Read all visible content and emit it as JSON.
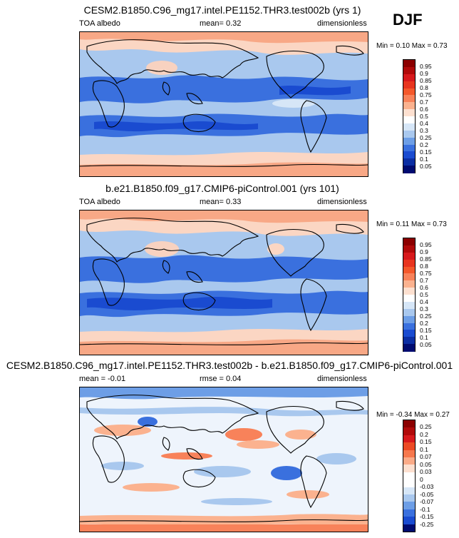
{
  "season": "DJF",
  "panels": [
    {
      "id": "test",
      "title": "CESM2.B1850.C96_mg17.intel.PE1152.THR3.test002b (yrs 1)",
      "left_label": "TOA albedo",
      "center_label": "mean=  0.32",
      "right_label": "dimensionless",
      "minmax": "Min =  0.10 Max =  0.73"
    },
    {
      "id": "control",
      "title": "b.e21.B1850.f09_g17.CMIP6-piControl.001 (yrs 101)",
      "left_label": "TOA albedo",
      "center_label": "mean=  0.33",
      "right_label": "dimensionless",
      "minmax": "Min =  0.11 Max =  0.73"
    },
    {
      "id": "diff",
      "title": "CESM2.B1850.C96_mg17.intel.PE1152.THR3.test002b - b.e21.B1850.f09_g17.CMIP6-piControl.001",
      "left_label": "mean =  -0.01",
      "center_label": "rmse =  0.04",
      "right_label": "dimensionless",
      "minmax": "Min =  -0.34 Max =  0.27"
    }
  ],
  "colorbars": {
    "absolute": {
      "labels": [
        "0.95",
        "0.9",
        "0.85",
        "0.8",
        "0.75",
        "0.7",
        "0.6",
        "0.5",
        "0.4",
        "0.3",
        "0.25",
        "0.2",
        "0.15",
        "0.1",
        "0.05"
      ],
      "colors": [
        "#8b0000",
        "#b00a0a",
        "#d7191c",
        "#e8351f",
        "#f4582b",
        "#f8825a",
        "#fbb28f",
        "#fde0d0",
        "#ffffff",
        "#d6e6f7",
        "#a9c8ee",
        "#6d9ee6",
        "#3a70de",
        "#1a4bd0",
        "#0b2ea3",
        "#000b70"
      ]
    },
    "difference": {
      "labels": [
        "0.25",
        "0.2",
        "0.15",
        "0.1",
        "0.07",
        "0.05",
        "0.03",
        "0",
        "-0.03",
        "-0.05",
        "-0.07",
        "-0.1",
        "-0.15",
        "-0.25"
      ],
      "colors": [
        "#8b0000",
        "#b00a0a",
        "#d7191c",
        "#ec4a25",
        "#f6784d",
        "#fbab88",
        "#fde0d0",
        "#ffffff",
        "#ffffff",
        "#d6e6f7",
        "#a9c8ee",
        "#6d9ee6",
        "#3a70de",
        "#1a4bd0",
        "#000b70"
      ]
    }
  }
}
